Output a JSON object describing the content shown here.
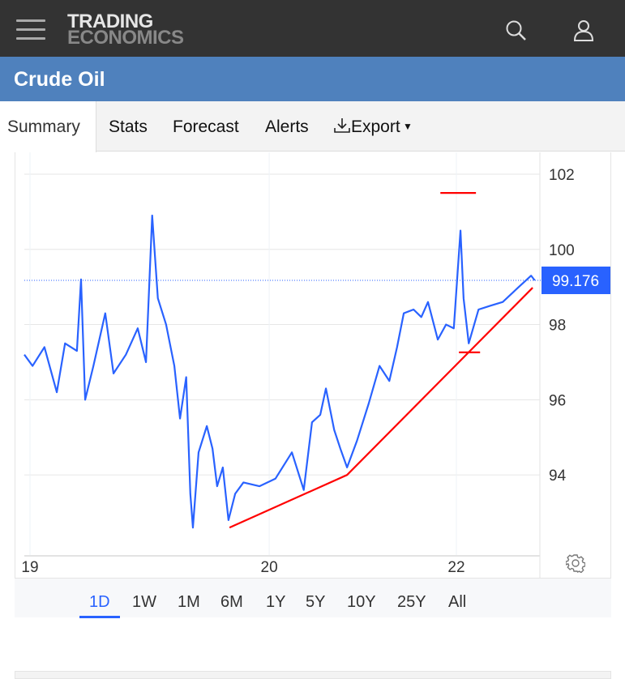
{
  "header": {
    "logo_top": "TRADING",
    "logo_bottom": "ECONOMICS"
  },
  "title": "Crude Oil",
  "tabs": [
    "Summary",
    "Stats",
    "Forecast",
    "Alerts",
    "Export"
  ],
  "ranges": [
    "1D",
    "1W",
    "1M",
    "6M",
    "1Y",
    "5Y",
    "10Y",
    "25Y",
    "All"
  ],
  "active_range": "1D",
  "colors": {
    "line": "#2962ff",
    "trend": "#ff0000",
    "header": "#333333",
    "title_bar": "#4f81bd"
  },
  "chart_data": {
    "type": "line",
    "title": "Crude Oil",
    "last_value": "99.176",
    "ylim": [
      91.87,
      102.43
    ],
    "xlim": [
      0,
      100
    ],
    "yticks": [
      94,
      96,
      98,
      100,
      102
    ],
    "xticks": [
      {
        "x": 1.1,
        "label": "19"
      },
      {
        "x": 47.5,
        "label": "20"
      },
      {
        "x": 83.8,
        "label": "22"
      }
    ],
    "series": [
      {
        "name": "Crude Oil",
        "x": [
          0,
          1.6,
          3.9,
          6.3,
          7.9,
          10.2,
          11,
          11.8,
          13.4,
          15.7,
          17.3,
          19.7,
          22,
          23.6,
          24.8,
          25.9,
          27.5,
          29.1,
          30.2,
          31.4,
          32.2,
          32.7,
          33.8,
          35.4,
          36.5,
          37.4,
          38.5,
          39.6,
          40.9,
          42.5,
          45.6,
          48.7,
          51.9,
          54.2,
          55.8,
          57.4,
          58.5,
          60.1,
          61.3,
          62.6,
          64.5,
          66.8,
          68.9,
          70.8,
          72.3,
          73.6,
          75.5,
          77,
          78.3,
          80.2,
          81.8,
          83.3,
          84.6,
          85.2,
          86.2,
          88.1,
          90.4,
          92.8,
          95.9,
          98.3,
          99
        ],
        "y": [
          97.2,
          96.9,
          97.4,
          96.2,
          97.5,
          97.3,
          99.2,
          96.0,
          96.9,
          98.3,
          96.7,
          97.2,
          97.9,
          97.0,
          100.9,
          98.7,
          98.0,
          96.9,
          95.5,
          96.6,
          93.5,
          92.6,
          94.6,
          95.3,
          94.7,
          93.7,
          94.2,
          92.8,
          93.5,
          93.8,
          93.7,
          93.9,
          94.6,
          93.6,
          95.4,
          95.6,
          96.3,
          95.2,
          94.7,
          94.2,
          94.9,
          95.9,
          96.9,
          96.5,
          97.4,
          98.3,
          98.4,
          98.2,
          98.6,
          97.6,
          98.0,
          97.9,
          100.5,
          98.7,
          97.5,
          98.4,
          98.5,
          98.6,
          99.0,
          99.3,
          99.176
        ]
      }
    ],
    "trendline": {
      "x": [
        39.8,
        62.6,
        98.6
      ],
      "y": [
        92.6,
        94.0,
        98.98
      ]
    },
    "markers": [
      {
        "x1": 80.7,
        "x2": 87.6,
        "y": 101.5
      },
      {
        "x1": 84.3,
        "x2": 88.4,
        "y": 97.26
      }
    ]
  }
}
